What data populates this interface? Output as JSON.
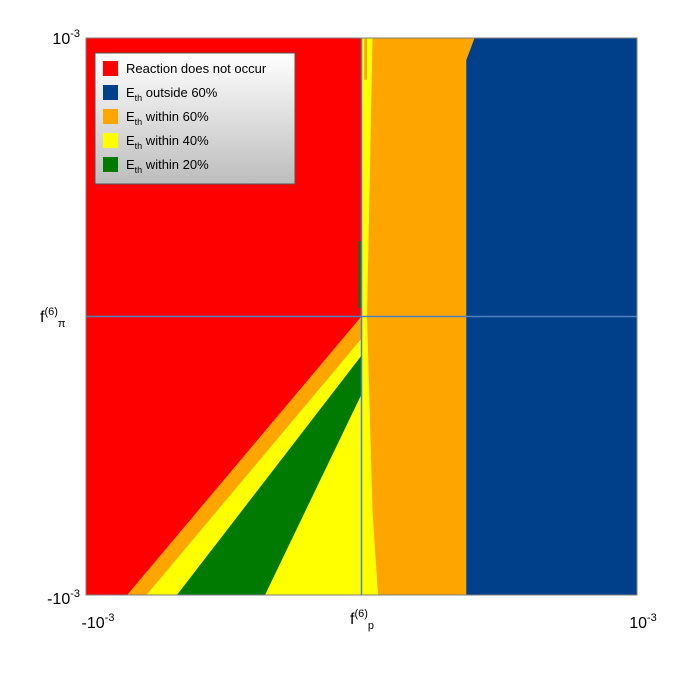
{
  "chart_data": {
    "type": "heatmap",
    "title": "",
    "xlabel": {
      "base": "f",
      "sup": "(6)",
      "sub": "p"
    },
    "ylabel": {
      "base": "f",
      "sup": "(6)",
      "sub": "π"
    },
    "xlim": [
      -0.001,
      0.001
    ],
    "ylim": [
      -0.001,
      0.001
    ],
    "x_ticks": [
      {
        "value": -0.001,
        "base": "-10",
        "exp": "-3"
      },
      {
        "value": 0.001,
        "base": "10",
        "exp": "-3"
      }
    ],
    "y_ticks": [
      {
        "value": -0.001,
        "base": "-10",
        "exp": "-3"
      },
      {
        "value": 0.001,
        "base": "10",
        "exp": "-3"
      }
    ],
    "crosshair": {
      "x": 0,
      "y": 0,
      "color": "#4f81bd"
    },
    "legend": {
      "position": "top-left",
      "entries": [
        {
          "key": "no_reaction",
          "label": "Reaction does not occur",
          "color": "#ff0000"
        },
        {
          "key": "outside60",
          "label_pre": "E",
          "label_sub": "th",
          "label_post": " outside 60%",
          "color": "#003f8a"
        },
        {
          "key": "within60",
          "label_pre": "E",
          "label_sub": "th",
          "label_post": " within 60%",
          "color": "#ffa500"
        },
        {
          "key": "within40",
          "label_pre": "E",
          "label_sub": "th",
          "label_post": " within 40%",
          "color": "#ffff00"
        },
        {
          "key": "within20",
          "label_pre": "E",
          "label_sub": "th",
          "label_post": " within 20%",
          "color": "#007a00"
        }
      ]
    },
    "regions": [
      {
        "category": "no_reaction",
        "color": "#ff0000",
        "polygon": [
          [
            -0.001,
            -0.001
          ],
          [
            -0.00085,
            -0.001
          ],
          [
            0,
            0
          ],
          [
            0,
            0.001
          ],
          [
            -0.001,
            0.001
          ]
        ]
      },
      {
        "category": "within60",
        "color": "#ffa500",
        "polygon": [
          [
            -0.00085,
            -0.001
          ],
          [
            -0.00078,
            -0.001
          ],
          [
            0,
            -8e-05
          ],
          [
            0,
            0
          ]
        ]
      },
      {
        "category": "within40",
        "color": "#ffff00",
        "polygon": [
          [
            -0.00078,
            -0.001
          ],
          [
            -0.00067,
            -0.001
          ],
          [
            0,
            -0.00014
          ],
          [
            0,
            -8e-05
          ]
        ]
      },
      {
        "category": "within20",
        "color": "#007a00",
        "polygon": [
          [
            -0.00067,
            -0.001
          ],
          [
            -0.00035,
            -0.001
          ],
          [
            0,
            -0.00028
          ],
          [
            0,
            -0.00014
          ]
        ]
      },
      {
        "category": "within40",
        "color": "#ffff00",
        "polygon": [
          [
            -0.00035,
            -0.001
          ],
          [
            6e-05,
            -0.001
          ],
          [
            4e-05,
            -0.0007
          ],
          [
            2e-05,
            0
          ],
          [
            4e-05,
            0.001
          ],
          [
            0,
            0.001
          ],
          [
            0,
            -0.00028
          ]
        ]
      },
      {
        "category": "within20",
        "color": "#007a00",
        "polygon": [
          [
            -1e-05,
            3e-05
          ],
          [
            0,
            3e-05
          ],
          [
            0,
            0.00027
          ],
          [
            -1e-05,
            0.00027
          ]
        ]
      },
      {
        "category": "within60",
        "color": "#ffa500",
        "polygon": [
          [
            6e-05,
            -0.001
          ],
          [
            0.00038,
            -0.001
          ],
          [
            0.00038,
            0.00092
          ],
          [
            0.00041,
            0.001
          ],
          [
            4e-05,
            0.001
          ],
          [
            2e-05,
            0
          ],
          [
            4e-05,
            -0.0007
          ]
        ]
      },
      {
        "category": "within60",
        "color": "#ffa500",
        "polygon": [
          [
            1e-05,
            0.00085
          ],
          [
            2e-05,
            0.00085
          ],
          [
            2e-05,
            0.001
          ],
          [
            1e-05,
            0.001
          ]
        ]
      },
      {
        "category": "outside60",
        "color": "#003f8a",
        "polygon": [
          [
            0.00038,
            -0.001
          ],
          [
            0.001,
            -0.001
          ],
          [
            0.001,
            0.001
          ],
          [
            0.00041,
            0.001
          ],
          [
            0.00038,
            0.00092
          ]
        ]
      }
    ]
  }
}
